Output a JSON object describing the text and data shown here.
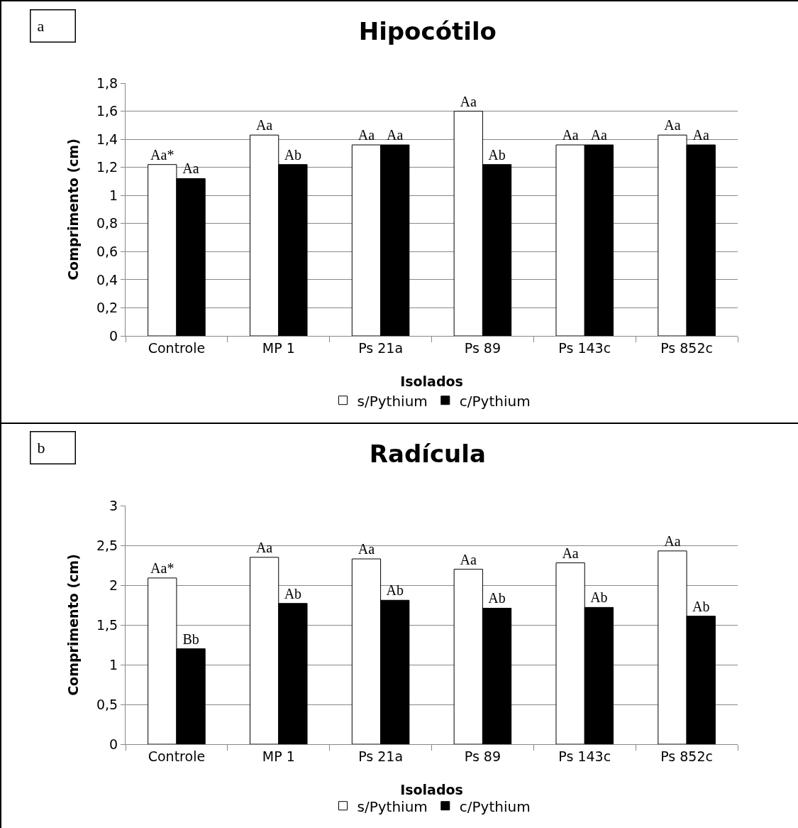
{
  "chart_data": [
    {
      "type": "bar",
      "title": "Hipocótilo",
      "xlabel": "Isolados",
      "ylabel": "Comprimento (cm)",
      "annotations": [
        "a"
      ],
      "categories": [
        "Controle",
        "MP 1",
        "Ps 21a",
        "Ps 89",
        "Ps 143c",
        "Ps 852c"
      ],
      "series": [
        {
          "name": "s/Pythium",
          "color": "#ffffff",
          "values": [
            1.22,
            1.43,
            1.36,
            1.6,
            1.36,
            1.43
          ],
          "value_labels": [
            "Aa*",
            "Aa",
            "Aa",
            "Aa",
            "Aa",
            "Aa"
          ]
        },
        {
          "name": "c/Pythium",
          "color": "#000000",
          "values": [
            1.12,
            1.22,
            1.36,
            1.22,
            1.36,
            1.36
          ],
          "value_labels": [
            "Aa",
            "Ab",
            "Aa",
            "Ab",
            "Aa",
            "Aa"
          ]
        }
      ],
      "ylim": [
        0,
        1.8
      ],
      "yticks": [
        {
          "value": 0,
          "label": "0"
        },
        {
          "value": 0.2,
          "label": "0,2"
        },
        {
          "value": 0.4,
          "label": "0,4"
        },
        {
          "value": 0.6,
          "label": "0,6"
        },
        {
          "value": 0.8,
          "label": "0,8"
        },
        {
          "value": 1,
          "label": "1"
        },
        {
          "value": 1.2,
          "label": "1,2"
        },
        {
          "value": 1.4,
          "label": "1,4"
        },
        {
          "value": 1.6,
          "label": "1,6"
        },
        {
          "value": 1.8,
          "label": "1,8"
        }
      ],
      "grid": "y",
      "legend": "bottom"
    },
    {
      "type": "bar",
      "title": "Radícula",
      "xlabel": "Isolados",
      "ylabel": "Comprimento (cm)",
      "annotations": [
        "b"
      ],
      "categories": [
        "Controle",
        "MP 1",
        "Ps 21a",
        "Ps 89",
        "Ps 143c",
        "Ps 852c"
      ],
      "series": [
        {
          "name": "s/Pythium",
          "color": "#ffffff",
          "values": [
            2.09,
            2.35,
            2.33,
            2.2,
            2.28,
            2.43
          ],
          "value_labels": [
            "Aa*",
            "Aa",
            "Aa",
            "Aa",
            "Aa",
            "Aa"
          ]
        },
        {
          "name": "c/Pythium",
          "color": "#000000",
          "values": [
            1.2,
            1.77,
            1.81,
            1.71,
            1.72,
            1.61
          ],
          "value_labels": [
            "Bb",
            "Ab",
            "Ab",
            "Ab",
            "Ab",
            "Ab"
          ]
        }
      ],
      "ylim": [
        0,
        3
      ],
      "yticks": [
        {
          "value": 0,
          "label": "0"
        },
        {
          "value": 0.5,
          "label": "0,5"
        },
        {
          "value": 1,
          "label": "1"
        },
        {
          "value": 1.5,
          "label": "1,5"
        },
        {
          "value": 2,
          "label": "2"
        },
        {
          "value": 2.5,
          "label": "2,5"
        },
        {
          "value": 3,
          "label": "3"
        }
      ],
      "grid": "y",
      "legend": "bottom"
    }
  ]
}
